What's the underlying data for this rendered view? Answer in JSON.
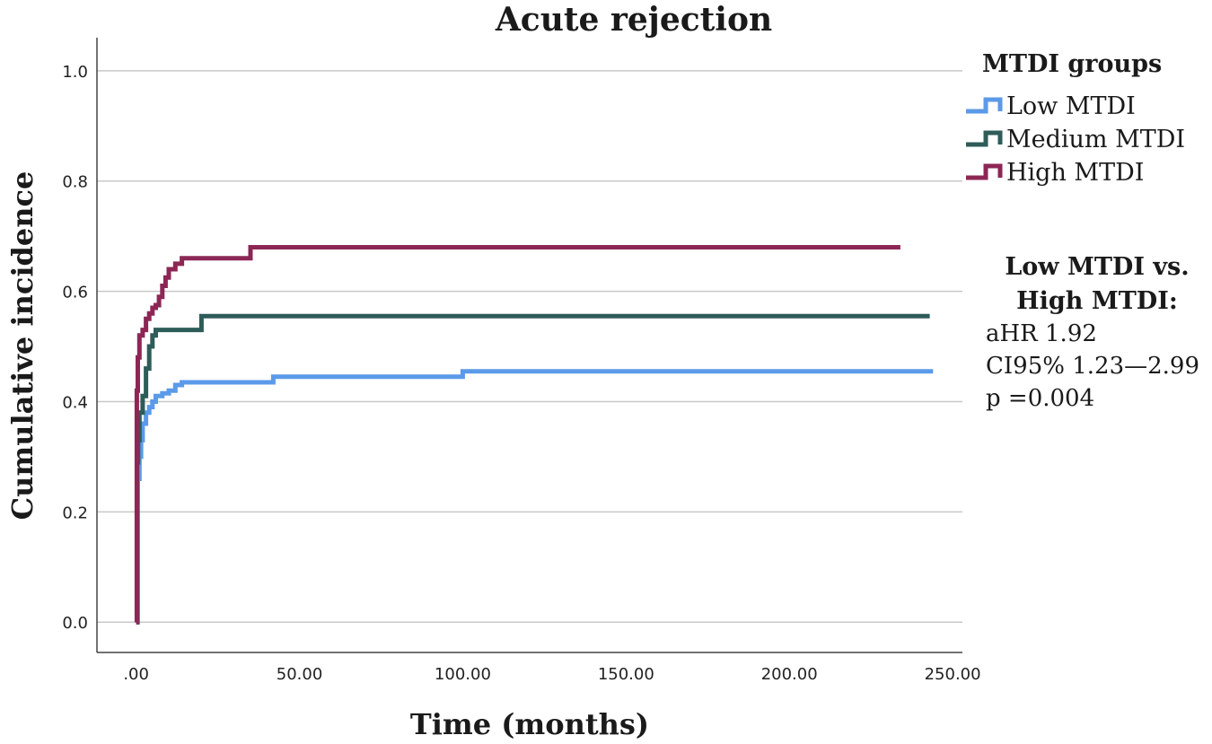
{
  "chart_data": {
    "type": "line",
    "title": "Acute rejection",
    "xlabel": "Time (months)",
    "ylabel": "Cumulative incidence",
    "xlim": [
      -12,
      253
    ],
    "ylim": [
      -0.055,
      1.06
    ],
    "x_ticks": [
      0,
      50,
      100,
      150,
      200,
      250
    ],
    "x_tick_labels": [
      ".00",
      "50.00",
      "100.00",
      "150.00",
      "200.00",
      "250.00"
    ],
    "y_ticks": [
      0,
      0.2,
      0.4,
      0.6,
      0.8,
      1.0
    ],
    "y_tick_labels": [
      "0.0",
      "0.2",
      "0.4",
      "0.6",
      "0.8",
      "1.0"
    ],
    "grid": true,
    "legend_title": "MTDI groups",
    "legend_position": "top-right, outside plot",
    "step": true,
    "series": [
      {
        "name": "Low MTDI",
        "color": "#5b9ae8",
        "x": [
          0,
          0.5,
          1,
          1.5,
          2,
          3,
          4,
          5,
          6,
          8,
          10,
          12,
          14,
          20,
          30,
          42,
          100,
          244
        ],
        "y": [
          0,
          0.26,
          0.3,
          0.33,
          0.36,
          0.38,
          0.39,
          0.4,
          0.41,
          0.415,
          0.42,
          0.43,
          0.435,
          0.435,
          0.435,
          0.445,
          0.455,
          0.455
        ]
      },
      {
        "name": "Medium MTDI",
        "color": "#2e5c58",
        "x": [
          0,
          0.3,
          0.6,
          1,
          2,
          3,
          4,
          5,
          6,
          20,
          243
        ],
        "y": [
          0,
          0.29,
          0.33,
          0.38,
          0.41,
          0.46,
          0.5,
          0.52,
          0.53,
          0.555,
          0.555
        ]
      },
      {
        "name": "High MTDI",
        "color": "#8c2755",
        "x": [
          0,
          0.2,
          0.5,
          1,
          2,
          3,
          4,
          5,
          6,
          7,
          8,
          9,
          10,
          12,
          14,
          35,
          234
        ],
        "y": [
          0,
          0.42,
          0.48,
          0.52,
          0.53,
          0.55,
          0.56,
          0.57,
          0.575,
          0.59,
          0.61,
          0.625,
          0.64,
          0.65,
          0.66,
          0.68,
          0.68
        ]
      }
    ],
    "annotations": [
      "Low MTDI vs.",
      "High MTDI:",
      "aHR 1.92",
      "CI95% 1.23—2.99",
      "p =0.004"
    ]
  }
}
